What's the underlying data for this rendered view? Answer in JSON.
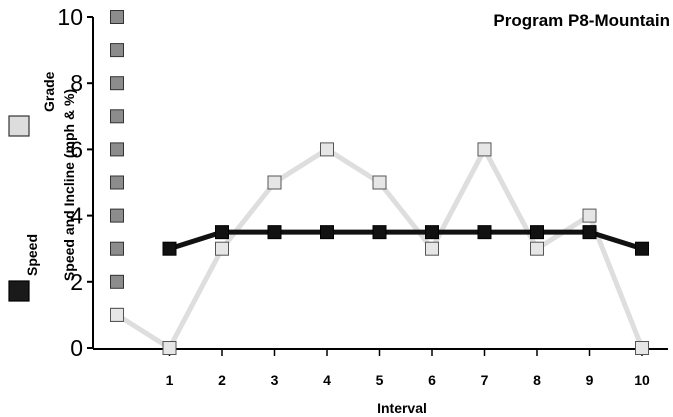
{
  "chart_data": {
    "type": "line",
    "title": "Program P8-Mountain",
    "xlabel": "Interval",
    "ylabel": "Speed and Incline (mph & %)",
    "ylim": [
      0,
      10
    ],
    "yticks": [
      "0",
      "2",
      "4",
      "6",
      "8",
      "10"
    ],
    "categories": [
      "",
      "1",
      "2",
      "3",
      "4",
      "5",
      "6",
      "7",
      "8",
      "9",
      "10"
    ],
    "series": [
      {
        "name": "Grade",
        "color": "#dddddd",
        "values": [
          1,
          0,
          3,
          5,
          6,
          5,
          3,
          6,
          3,
          4,
          0
        ]
      },
      {
        "name": "Speed",
        "color": "#1a1a1a",
        "values": [
          null,
          3,
          3.5,
          3.5,
          3.5,
          3.5,
          3.5,
          3.5,
          3.5,
          3.5,
          3
        ]
      }
    ],
    "scale_markers": [
      1,
      2,
      3,
      4,
      5,
      6,
      7,
      8,
      9,
      10
    ],
    "grid": false,
    "legend": "left"
  }
}
